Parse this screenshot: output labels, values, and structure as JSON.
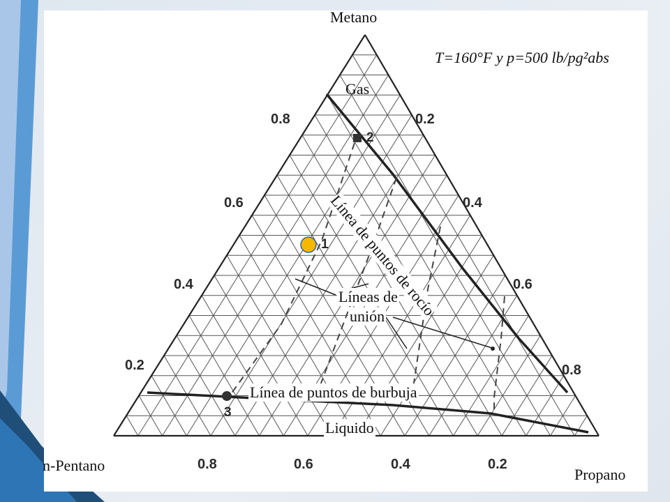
{
  "slide": {
    "accent_colors": [
      "#1f4e79",
      "#5b9bd5",
      "#a9c6e8"
    ]
  },
  "diagram": {
    "vertices": {
      "top": "Metano",
      "bottom_left": "n-Pentano",
      "bottom_right": "Propano"
    },
    "conditions": "T=160°F y p=500 lb/pg²abs",
    "region_labels": {
      "gas": "Gas",
      "liquid": "Liquido"
    },
    "curve_labels": {
      "dew_point": "Línea de puntos de rocío",
      "bubble_point": "Línea de puntos de burbuja",
      "tie_lines_line1": "Líneas de",
      "tie_lines_line2": "unión"
    },
    "left_ticks": [
      "0.8",
      "0.6",
      "0.4",
      "0.2"
    ],
    "right_ticks": [
      "0.2",
      "0.4",
      "0.6",
      "0.8"
    ],
    "bottom_ticks": [
      "0.8",
      "0.6",
      "0.4",
      "0.2"
    ],
    "points": {
      "p1": "1",
      "p2": "2",
      "p3": "3"
    },
    "marker_color": "#f5b800",
    "marker_outline": "#2e63a8"
  }
}
